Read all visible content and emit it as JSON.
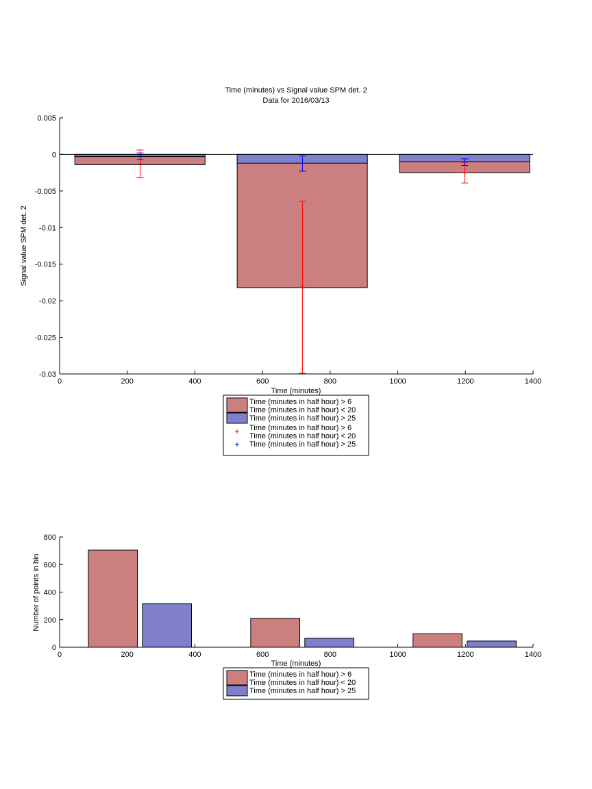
{
  "colors": {
    "bar_a": "#cc7f7f",
    "bar_b": "#7f7fcc",
    "err_a": "#ff0000",
    "err_b": "#0000ff"
  },
  "chart_data": [
    {
      "type": "bar",
      "title": "Time (minutes) vs Signal value SPM det. 2",
      "subtitle": "Data for 2016/03/13",
      "xlabel": "Time (minutes)",
      "ylabel": "Signal value SPM det. 2",
      "xlim": [
        0,
        1400
      ],
      "ylim": [
        -0.03,
        0.005
      ],
      "xticks": [
        0,
        200,
        400,
        600,
        800,
        1000,
        1200,
        1400
      ],
      "yticks": [
        0.005,
        0,
        -0.005,
        -0.01,
        -0.015,
        -0.02,
        -0.025,
        -0.03
      ],
      "ytick_labels": [
        "0.005",
        "0",
        "-0.005",
        "-0.01",
        "-0.015",
        "-0.02",
        "-0.025",
        "-0.03"
      ],
      "legend_position": "below",
      "bars": [
        {
          "x_start": 45,
          "x_end": 430,
          "value_a": -0.0014,
          "value_b": -0.0003
        },
        {
          "x_start": 525,
          "x_end": 910,
          "value_a": -0.0182,
          "value_b": -0.0012
        },
        {
          "x_start": 1005,
          "x_end": 1390,
          "value_a": -0.0025,
          "value_b": -0.001
        }
      ],
      "errorbars_a": [
        {
          "x": 238,
          "y": -0.0013,
          "low": -0.0032,
          "high": 0.0006
        },
        {
          "x": 718,
          "y": -0.018,
          "low": -0.0299,
          "high": -0.0064
        },
        {
          "x": 1198,
          "y": -0.0025,
          "low": -0.0039,
          "high": -0.0011
        }
      ],
      "errorbars_b": [
        {
          "x": 238,
          "y": -0.0002,
          "low": -0.0007,
          "high": 0.0002
        },
        {
          "x": 718,
          "y": -0.0012,
          "low": -0.0023,
          "high": -0.0002
        },
        {
          "x": 1198,
          "y": -0.001,
          "low": -0.0015,
          "high": -0.0006
        }
      ],
      "legend": [
        {
          "kind": "patch",
          "color": "bar_a",
          "lines": [
            "Time (minutes in half hour) > 6",
            "Time (minutes in half hour) < 20"
          ]
        },
        {
          "kind": "patch",
          "color": "bar_b",
          "lines": [
            "Time (minutes in half hour) > 25"
          ]
        },
        {
          "kind": "marker",
          "color": "err_a",
          "lines": [
            "Time (minutes in half hour) > 6",
            "Time (minutes in half hour) < 20"
          ]
        },
        {
          "kind": "marker",
          "color": "err_b",
          "lines": [
            "Time (minutes in half hour) > 25"
          ]
        }
      ]
    },
    {
      "type": "bar",
      "xlabel": "Time (minutes)",
      "ylabel": "Number of points in bin",
      "xlim": [
        0,
        1400
      ],
      "ylim": [
        0,
        800
      ],
      "xticks": [
        0,
        200,
        400,
        600,
        800,
        1000,
        1200,
        1400
      ],
      "yticks": [
        0,
        200,
        400,
        600,
        800
      ],
      "legend_position": "below",
      "series": [
        {
          "color": "bar_a",
          "bars": [
            {
              "x_start": 85,
              "x_end": 230,
              "value": 705
            },
            {
              "x_start": 565,
              "x_end": 710,
              "value": 210
            },
            {
              "x_start": 1045,
              "x_end": 1190,
              "value": 98
            }
          ]
        },
        {
          "color": "bar_b",
          "bars": [
            {
              "x_start": 245,
              "x_end": 390,
              "value": 315
            },
            {
              "x_start": 725,
              "x_end": 870,
              "value": 65
            },
            {
              "x_start": 1205,
              "x_end": 1350,
              "value": 45
            }
          ]
        }
      ],
      "legend": [
        {
          "kind": "patch",
          "color": "bar_a",
          "lines": [
            "Time (minutes in half hour) > 6",
            "Time (minutes in half hour) < 20"
          ]
        },
        {
          "kind": "patch",
          "color": "bar_b",
          "lines": [
            "Time (minutes in half hour) > 25"
          ]
        }
      ]
    }
  ]
}
